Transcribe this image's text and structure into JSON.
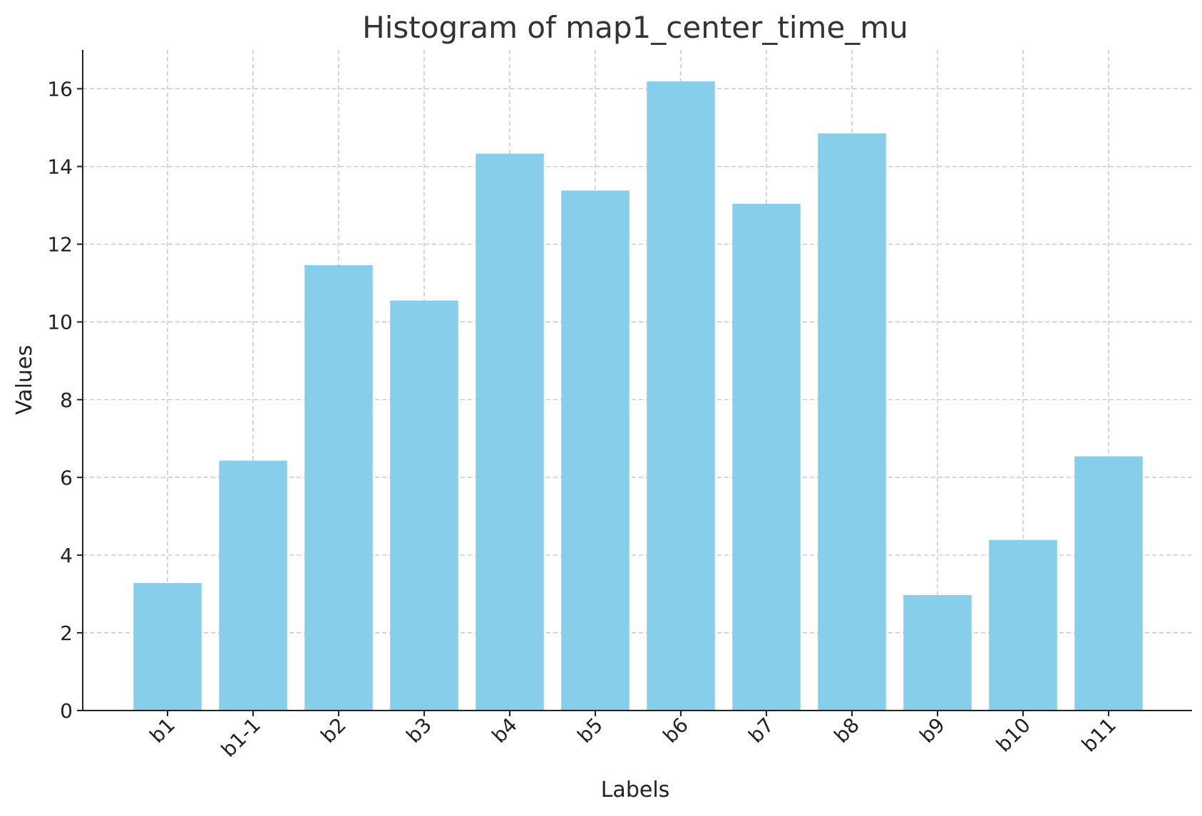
{
  "chart_data": {
    "type": "bar",
    "title": "Histogram of map1_center_time_mu",
    "xlabel": "Labels",
    "ylabel": "Values",
    "categories": [
      "b1",
      "b1-1",
      "b2",
      "b3",
      "b4",
      "b5",
      "b6",
      "b7",
      "b8",
      "b9",
      "b10",
      "b11"
    ],
    "values": [
      3.28,
      6.43,
      11.46,
      10.55,
      14.33,
      13.38,
      16.19,
      13.04,
      14.85,
      2.97,
      4.39,
      6.54
    ],
    "ylim": [
      0,
      17
    ],
    "yticks": [
      0,
      2,
      4,
      6,
      8,
      10,
      12,
      14,
      16
    ],
    "grid": true,
    "bar_color": "#87CEEB"
  }
}
